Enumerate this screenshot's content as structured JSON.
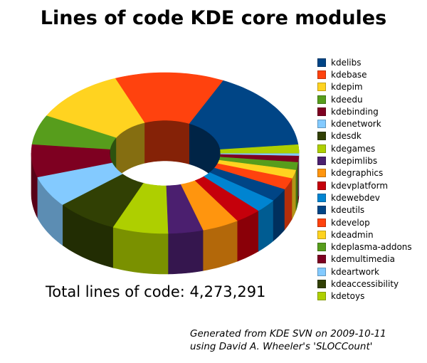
{
  "title": "Lines of code KDE core modules",
  "total_text": "Total lines of code: 4,273,291",
  "footer": {
    "line1": "Generated from KDE SVN on 2009-10-11",
    "line2": "using David A. Wheeler's 'SLOCCount'"
  },
  "chart_data": {
    "type": "pie",
    "variant": "3d-donut",
    "title": "Lines of code KDE core modules",
    "total_lines_of_code": 4273291,
    "legend_position": "right",
    "start_angle_deg": 6,
    "direction": "counterclockwise",
    "values_note": "Per-slice values are not labeled in the image; value_est and pct_est are estimated from slice arc angles and sum to the stated total of 4,273,291.",
    "slices": [
      {
        "label": "kdelibs",
        "color": "#004586",
        "value_est": 693391,
        "pct_est": 16.2
      },
      {
        "label": "kdebase",
        "color": "#FF420E",
        "value_est": 563800,
        "pct_est": 13.2
      },
      {
        "label": "kdepim",
        "color": "#FFD320",
        "value_est": 480700,
        "pct_est": 11.3
      },
      {
        "label": "kdeedu",
        "color": "#579D1C",
        "value_est": 256400,
        "pct_est": 6.0
      },
      {
        "label": "kdebinding",
        "color": "#7E0021",
        "value_est": 281300,
        "pct_est": 6.6
      },
      {
        "label": "kdenetwork",
        "color": "#83CAFF",
        "value_est": 267100,
        "pct_est": 6.3
      },
      {
        "label": "kdesdk",
        "color": "#314004",
        "value_est": 320500,
        "pct_est": 7.5
      },
      {
        "label": "kdegames",
        "color": "#AECF00",
        "value_est": 287200,
        "pct_est": 6.7
      },
      {
        "label": "kdepimlibs",
        "color": "#4B1F6F",
        "value_est": 180400,
        "pct_est": 4.2
      },
      {
        "label": "kdegraphics",
        "color": "#FF950E",
        "value_est": 192300,
        "pct_est": 4.5
      },
      {
        "label": "kdevplatform",
        "color": "#C5000B",
        "value_est": 136500,
        "pct_est": 3.2
      },
      {
        "label": "kdewebdev",
        "color": "#0084D1",
        "value_est": 115100,
        "pct_est": 2.7
      },
      {
        "label": "kdeutils",
        "color": "#004586",
        "value_est": 111600,
        "pct_est": 2.6
      },
      {
        "label": "kdevelop",
        "color": "#FF420E",
        "value_est": 99700,
        "pct_est": 2.3
      },
      {
        "label": "kdeadmin",
        "color": "#FFD320",
        "value_est": 73600,
        "pct_est": 1.7
      },
      {
        "label": "kdeplasma-addons",
        "color": "#579D1C",
        "value_est": 66500,
        "pct_est": 1.6
      },
      {
        "label": "kdemultimedia",
        "color": "#7E0021",
        "value_est": 54600,
        "pct_est": 1.3
      },
      {
        "label": "kdeartwork",
        "color": "#83CAFF",
        "value_est": 45100,
        "pct_est": 1.1
      },
      {
        "label": "kdeaccessibility",
        "color": "#314004",
        "value_est": 30900,
        "pct_est": 0.7
      },
      {
        "label": "kdetoys",
        "color": "#AECF00",
        "value_est": 16600,
        "pct_est": 0.4
      }
    ]
  }
}
